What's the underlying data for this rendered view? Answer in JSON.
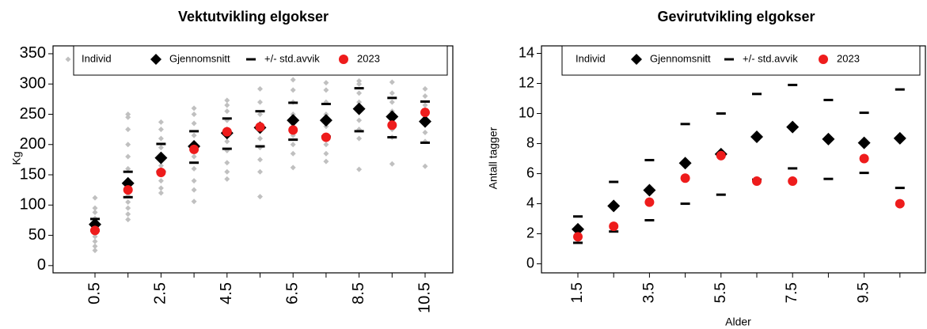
{
  "chart_data": [
    {
      "type": "scatter",
      "title": "Vektutvikling elgokser",
      "y_label": "Kg",
      "categories": [
        "0.5",
        null,
        "2.5",
        null,
        "4.5",
        null,
        "6.5",
        null,
        "8.5",
        null,
        "10.5"
      ],
      "ylim": [
        -12,
        363
      ],
      "yticks": [
        0,
        50,
        100,
        150,
        200,
        250,
        300,
        350
      ],
      "series": [
        {
          "name": "Individ",
          "color": "#c0c0c0",
          "marker": "small-diamond",
          "values": [
            [
              25,
              32,
              40,
              48,
              55,
              62,
              70,
              78,
              88,
              95,
              112
            ],
            [
              76,
              85,
              95,
              105,
              115,
              125,
              140,
              160,
              180,
              200,
              225,
              245,
              250
            ],
            [
              120,
              128,
              140,
              150,
              165,
              180,
              195,
              210,
              225,
              237
            ],
            [
              106,
              125,
              140,
              160,
              180,
              200,
              215,
              235,
              250,
              260
            ],
            [
              143,
              155,
              170,
              190,
              205,
              220,
              240,
              255,
              265,
              273
            ],
            [
              114,
              155,
              175,
              195,
              210,
              230,
              250,
              270,
              292
            ],
            [
              162,
              185,
              200,
              215,
              230,
              250,
              270,
              290,
              307
            ],
            [
              172,
              185,
              200,
              215,
              230,
              250,
              270,
              290,
              302
            ],
            [
              159,
              210,
              225,
              240,
              255,
              270,
              285,
              300,
              305
            ],
            [
              168,
              212,
              225,
              240,
              255,
              270,
              285,
              303
            ],
            [
              164,
              205,
              220,
              235,
              250,
              265,
              280,
              292
            ]
          ]
        },
        {
          "name": "Gjennomsnitt",
          "color": "#000000",
          "marker": "diamond",
          "values": [
            68,
            136,
            178,
            197,
            219,
            228,
            240,
            240,
            259,
            246,
            238
          ]
        },
        {
          "name": "+/- std.avvik",
          "color": "#000000",
          "marker": "dash",
          "values": [
            [
              58,
              77
            ],
            [
              113,
              155
            ],
            [
              155,
              201
            ],
            [
              170,
              222
            ],
            [
              193,
              243
            ],
            [
              197,
              255
            ],
            [
              208,
              269
            ],
            [
              213,
              267
            ],
            [
              222,
              293
            ],
            [
              212,
              277
            ],
            [
              203,
              271
            ]
          ]
        },
        {
          "name": "2023",
          "color": "#ee1c1c",
          "marker": "circle",
          "values": [
            58,
            125,
            154,
            192,
            221,
            229,
            224,
            212,
            null,
            232,
            253
          ]
        }
      ]
    },
    {
      "type": "scatter",
      "title": "Gevirutvikling elgokser",
      "y_label": "Antall tagger",
      "x_label": "Alder",
      "categories": [
        "1.5",
        null,
        "3.5",
        null,
        "5.5",
        null,
        "7.5",
        null,
        "9.5",
        null
      ],
      "ylim": [
        -0.6,
        14.5
      ],
      "yticks": [
        0,
        2,
        4,
        6,
        8,
        10,
        12,
        14
      ],
      "series": [
        {
          "name": "Individ",
          "marker": "none",
          "values": [
            [],
            [],
            [],
            [],
            [],
            [],
            [],
            [],
            [],
            []
          ]
        },
        {
          "name": "Gjennomsnitt",
          "color": "#000000",
          "marker": "diamond",
          "values": [
            2.3,
            3.85,
            4.9,
            6.7,
            7.3,
            8.45,
            9.1,
            8.3,
            8.05,
            8.35
          ]
        },
        {
          "name": "+/- std.avvik",
          "color": "#000000",
          "marker": "dash",
          "values": [
            [
              1.4,
              3.15
            ],
            [
              2.15,
              5.45
            ],
            [
              2.9,
              6.9
            ],
            [
              4.0,
              9.3
            ],
            [
              4.6,
              10.0
            ],
            [
              5.6,
              11.3
            ],
            [
              6.35,
              11.9
            ],
            [
              5.65,
              10.9
            ],
            [
              6.05,
              10.05
            ],
            [
              5.05,
              11.6
            ]
          ]
        },
        {
          "name": "2023",
          "color": "#ee1c1c",
          "marker": "circle",
          "values": [
            1.8,
            2.5,
            4.1,
            5.7,
            7.2,
            5.5,
            5.5,
            null,
            7.0,
            4.0
          ]
        }
      ]
    }
  ]
}
